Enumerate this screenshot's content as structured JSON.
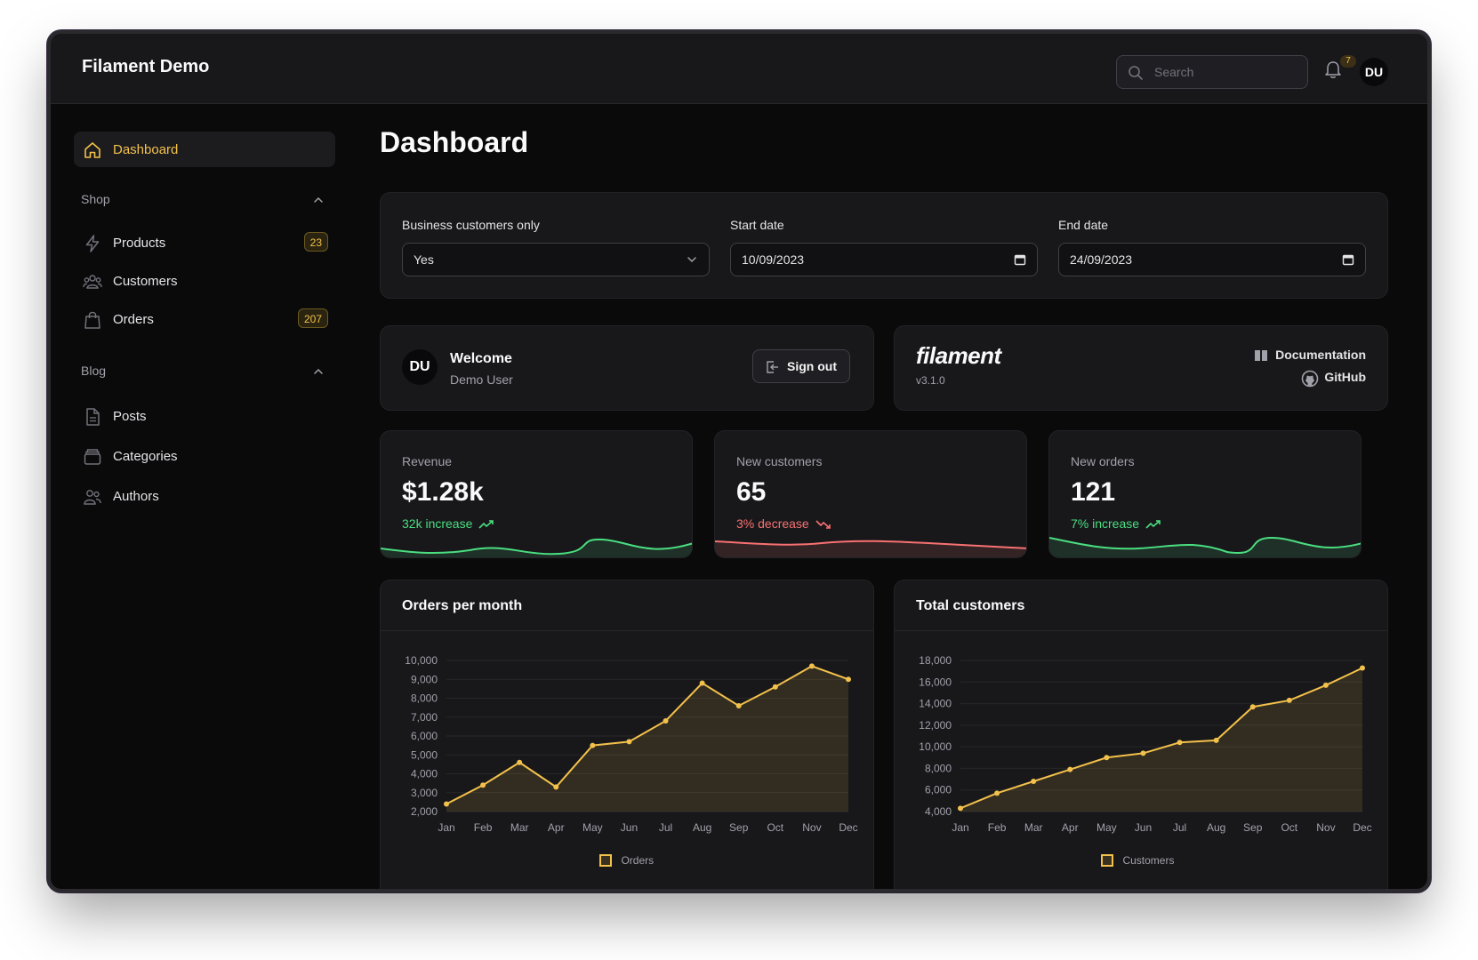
{
  "app": {
    "title": "Filament Demo"
  },
  "header": {
    "search_placeholder": "Search",
    "notification_count": "7",
    "user_initials": "DU"
  },
  "sidebar": {
    "dashboard": "Dashboard",
    "shop_label": "Shop",
    "products": {
      "label": "Products",
      "badge": "23"
    },
    "customers": {
      "label": "Customers"
    },
    "orders": {
      "label": "Orders",
      "badge": "207"
    },
    "blog_label": "Blog",
    "posts": "Posts",
    "categories": "Categories",
    "authors": "Authors"
  },
  "page": {
    "title": "Dashboard"
  },
  "filters": {
    "business_label": "Business customers only",
    "business_value": "Yes",
    "start_label": "Start date",
    "start_value": "10/09/2023",
    "end_label": "End date",
    "end_value": "24/09/2023"
  },
  "account": {
    "initials": "DU",
    "welcome": "Welcome",
    "name": "Demo User",
    "sign_out": "Sign out"
  },
  "filament_info": {
    "logo": "filament",
    "version": "v3.1.0",
    "docs": "Documentation",
    "github": "GitHub"
  },
  "stats": [
    {
      "label": "Revenue",
      "value": "$1.28k",
      "description": "32k increase",
      "trend": "up",
      "color": "#4ade80"
    },
    {
      "label": "New customers",
      "value": "65",
      "description": "3% decrease",
      "trend": "down",
      "color": "#f87171"
    },
    {
      "label": "New orders",
      "value": "121",
      "description": "7% increase",
      "trend": "up",
      "color": "#4ade80"
    }
  ],
  "colors": {
    "accent": "#f3c14b",
    "success": "#4ade80",
    "danger": "#f87171"
  },
  "chart_data": [
    {
      "type": "line",
      "title": "Orders per month",
      "categories": [
        "Jan",
        "Feb",
        "Mar",
        "Apr",
        "May",
        "Jun",
        "Jul",
        "Aug",
        "Sep",
        "Oct",
        "Nov",
        "Dec"
      ],
      "series": [
        {
          "name": "Orders",
          "values": [
            2400,
            3400,
            4600,
            3300,
            5500,
            5700,
            6800,
            8800,
            7600,
            8600,
            9700,
            9000
          ]
        }
      ],
      "yticks": [
        2000,
        3000,
        4000,
        5000,
        6000,
        7000,
        8000,
        9000,
        10000
      ],
      "ytick_labels": [
        "2,000",
        "3,000",
        "4,000",
        "5,000",
        "6,000",
        "7,000",
        "8,000",
        "9,000",
        "10,000"
      ],
      "ylim": [
        2000,
        10000
      ],
      "fill": true,
      "legend": "bottom"
    },
    {
      "type": "line",
      "title": "Total customers",
      "categories": [
        "Jan",
        "Feb",
        "Mar",
        "Apr",
        "May",
        "Jun",
        "Jul",
        "Aug",
        "Sep",
        "Oct",
        "Nov",
        "Dec"
      ],
      "series": [
        {
          "name": "Customers",
          "values": [
            4300,
            5700,
            6800,
            7900,
            9000,
            9400,
            10400,
            10600,
            13700,
            14300,
            15700,
            17300
          ]
        }
      ],
      "yticks": [
        4000,
        6000,
        8000,
        10000,
        12000,
        14000,
        16000,
        18000
      ],
      "ytick_labels": [
        "4,000",
        "6,000",
        "8,000",
        "10,000",
        "12,000",
        "14,000",
        "16,000",
        "18,000"
      ],
      "ylim": [
        4000,
        18000
      ],
      "fill": true,
      "legend": "bottom"
    }
  ]
}
